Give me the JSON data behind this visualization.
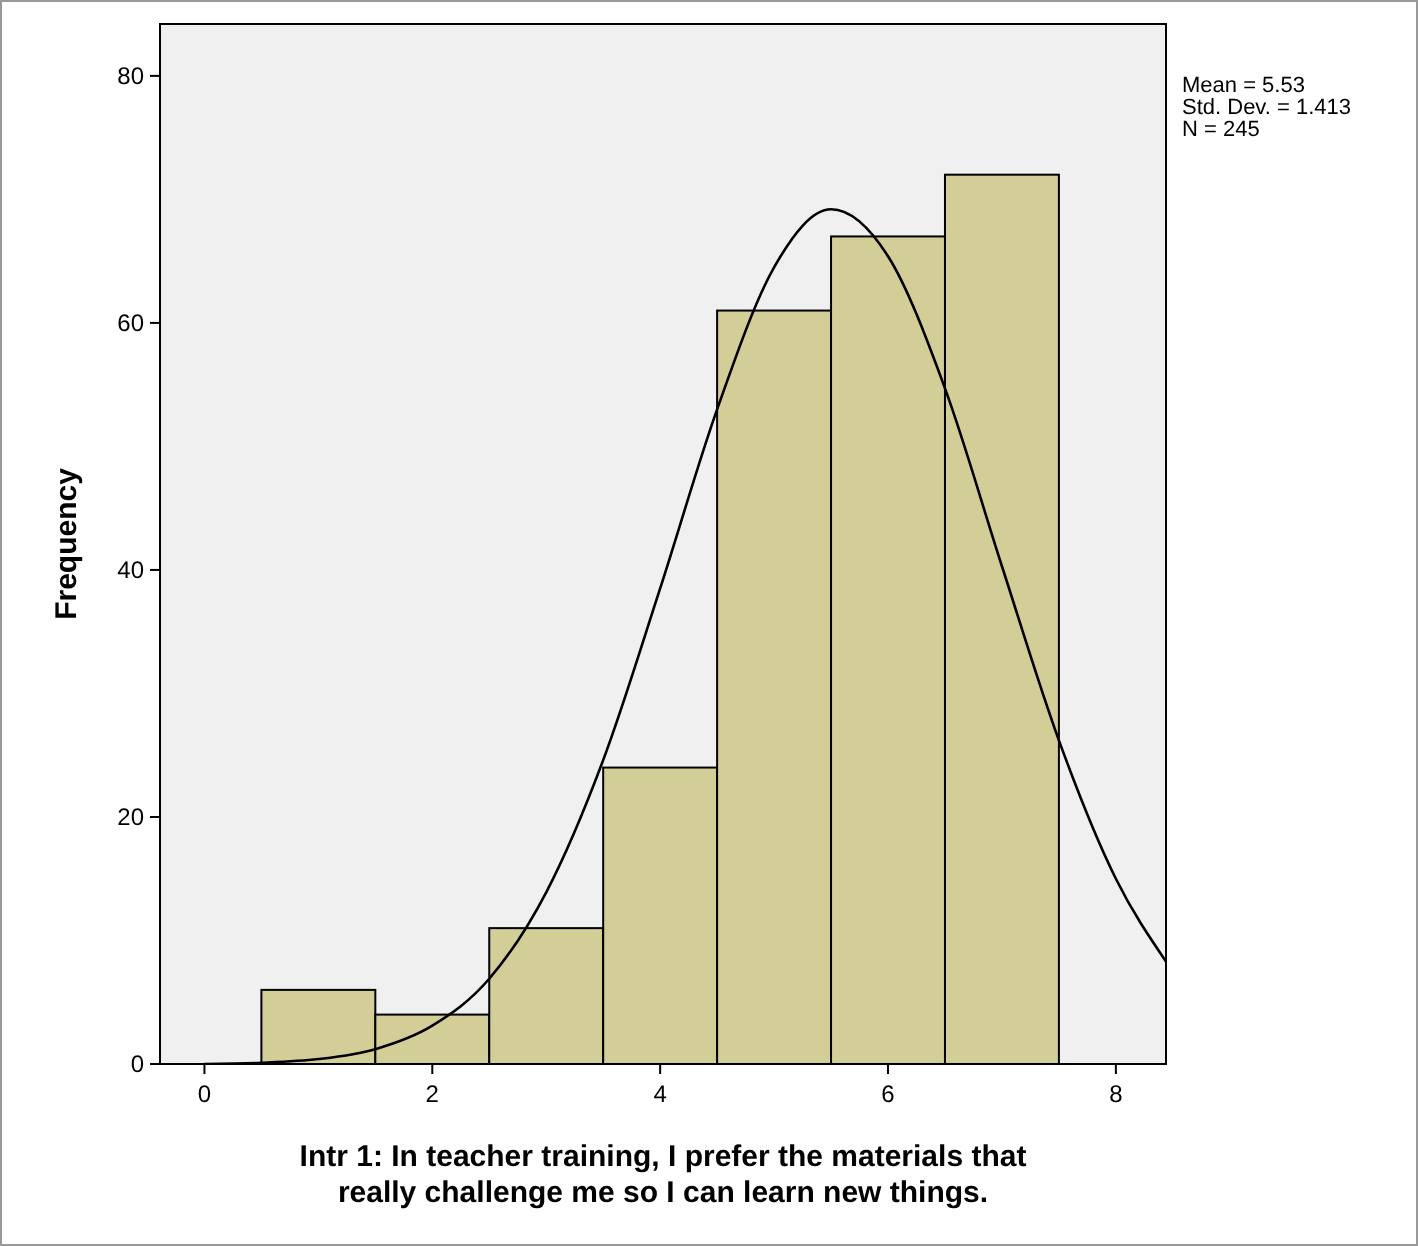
{
  "chart_data": {
    "type": "histogram",
    "xlabel": "Intr 1: In teacher training, I prefer the materials that\nreally challenge me so I can learn new things.",
    "ylabel": "Frequency",
    "bins": [
      0.5,
      1.5,
      2.5,
      3.5,
      4.5,
      5.5,
      6.5,
      7.5
    ],
    "values": [
      6,
      4,
      11,
      24,
      61,
      67,
      72
    ],
    "color": "#d3ce97",
    "series": [
      {
        "type": "line",
        "color": "#000000",
        "x": [
          0,
          0.5,
          1,
          1.5,
          2,
          2.5,
          3,
          3.5,
          4,
          4.5,
          5,
          5.5,
          6,
          6.5,
          7,
          7.5,
          8,
          8.44
        ],
        "values": [
          0,
          0.1,
          0.4,
          1.2,
          3.1,
          6.9,
          13.9,
          24.6,
          38.5,
          53.0,
          64.5,
          69.2,
          65.4,
          54.7,
          40.3,
          26.2,
          15.0,
          8.3
        ]
      }
    ],
    "xlim": [
      -0.39,
      8.44
    ],
    "xticks": [
      0,
      2,
      4,
      6,
      8
    ],
    "ylim": [
      0,
      84.2
    ],
    "yticks": [
      0,
      20,
      40,
      60,
      80
    ],
    "annotations": [
      "Mean = 5.53",
      "Std. Dev. = 1.413",
      "N = 245"
    ]
  }
}
